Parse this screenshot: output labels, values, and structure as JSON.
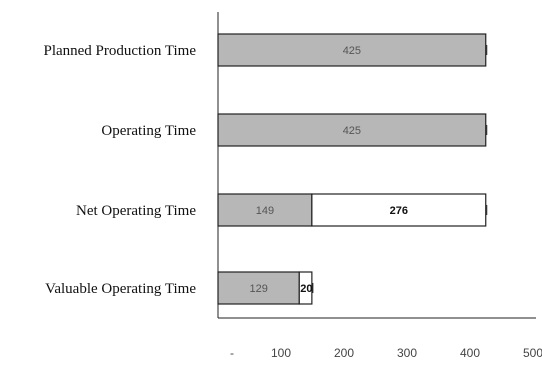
{
  "chart_data": {
    "type": "bar",
    "orientation": "horizontal",
    "stacked": true,
    "title": "",
    "xlabel": "",
    "ylabel": "",
    "categories": [
      "Planned Production Time",
      "Operating Time",
      "Net Operating Time",
      "Valuable Operating Time"
    ],
    "series": [
      {
        "values": [
          425,
          425,
          149,
          129
        ],
        "labels": [
          "425",
          "425",
          "149",
          "129"
        ],
        "color": "#b7b7b7"
      },
      {
        "values": [
          0,
          0,
          276,
          20
        ],
        "labels": [
          "",
          "",
          "276",
          "20"
        ],
        "color": "#ffffff"
      }
    ],
    "xticks": [
      0,
      100,
      200,
      300,
      400,
      500
    ],
    "xtick_labels": [
      "-",
      "100",
      "200",
      "300",
      "400",
      "500"
    ],
    "xlim": [
      0,
      500
    ],
    "grid": false,
    "legend": "none"
  }
}
